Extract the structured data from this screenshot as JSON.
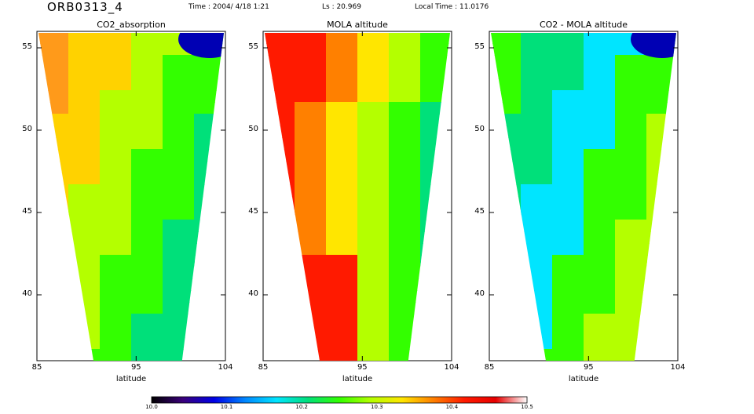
{
  "header": {
    "orbit": "ORB0313_4",
    "time": "Time : 2004/ 4/18  1:21",
    "ls": "Ls :  20.969",
    "local_time": "Local Time :  11.0176"
  },
  "colors": {
    "colormap": [
      "#000000",
      "#3a007a",
      "#0000e6",
      "#0088ff",
      "#00e5ff",
      "#00e07a",
      "#33ff00",
      "#b4ff00",
      "#ffe600",
      "#ff8000",
      "#ff1a00",
      "#e60000",
      "#ffffff"
    ]
  },
  "chart_data": [
    {
      "type": "heatmap",
      "title": "CO2_absorption",
      "xlabel": "latitude",
      "xlim": [
        85,
        104
      ],
      "ylim": [
        36,
        56
      ],
      "xticks": [
        "85",
        "95",
        "104"
      ],
      "yticks": [
        "55",
        "50",
        "45",
        "40"
      ],
      "colorbar_position": 0.55
    },
    {
      "type": "heatmap",
      "title": "MOLA altitude",
      "xlabel": "latitude",
      "xlim": [
        85,
        104
      ],
      "ylim": [
        36,
        56
      ],
      "xticks": [
        "85",
        "95",
        "104"
      ],
      "yticks": [
        "55",
        "50",
        "45",
        "40"
      ],
      "colorbar_position": 0.6
    },
    {
      "type": "heatmap",
      "title": "CO2 - MOLA altitude",
      "xlabel": "latitude",
      "xlim": [
        85,
        104
      ],
      "ylim": [
        36,
        56
      ],
      "xticks": [
        "85",
        "95",
        "104"
      ],
      "yticks": [
        "55",
        "50",
        "45",
        "40"
      ],
      "colorbar_position": 0.5
    }
  ],
  "colorbar": {
    "ticks": [
      "10.0",
      "10.1",
      "10.2",
      "10.3",
      "10.4",
      "10.5"
    ],
    "range": [
      10.0,
      10.5
    ]
  }
}
